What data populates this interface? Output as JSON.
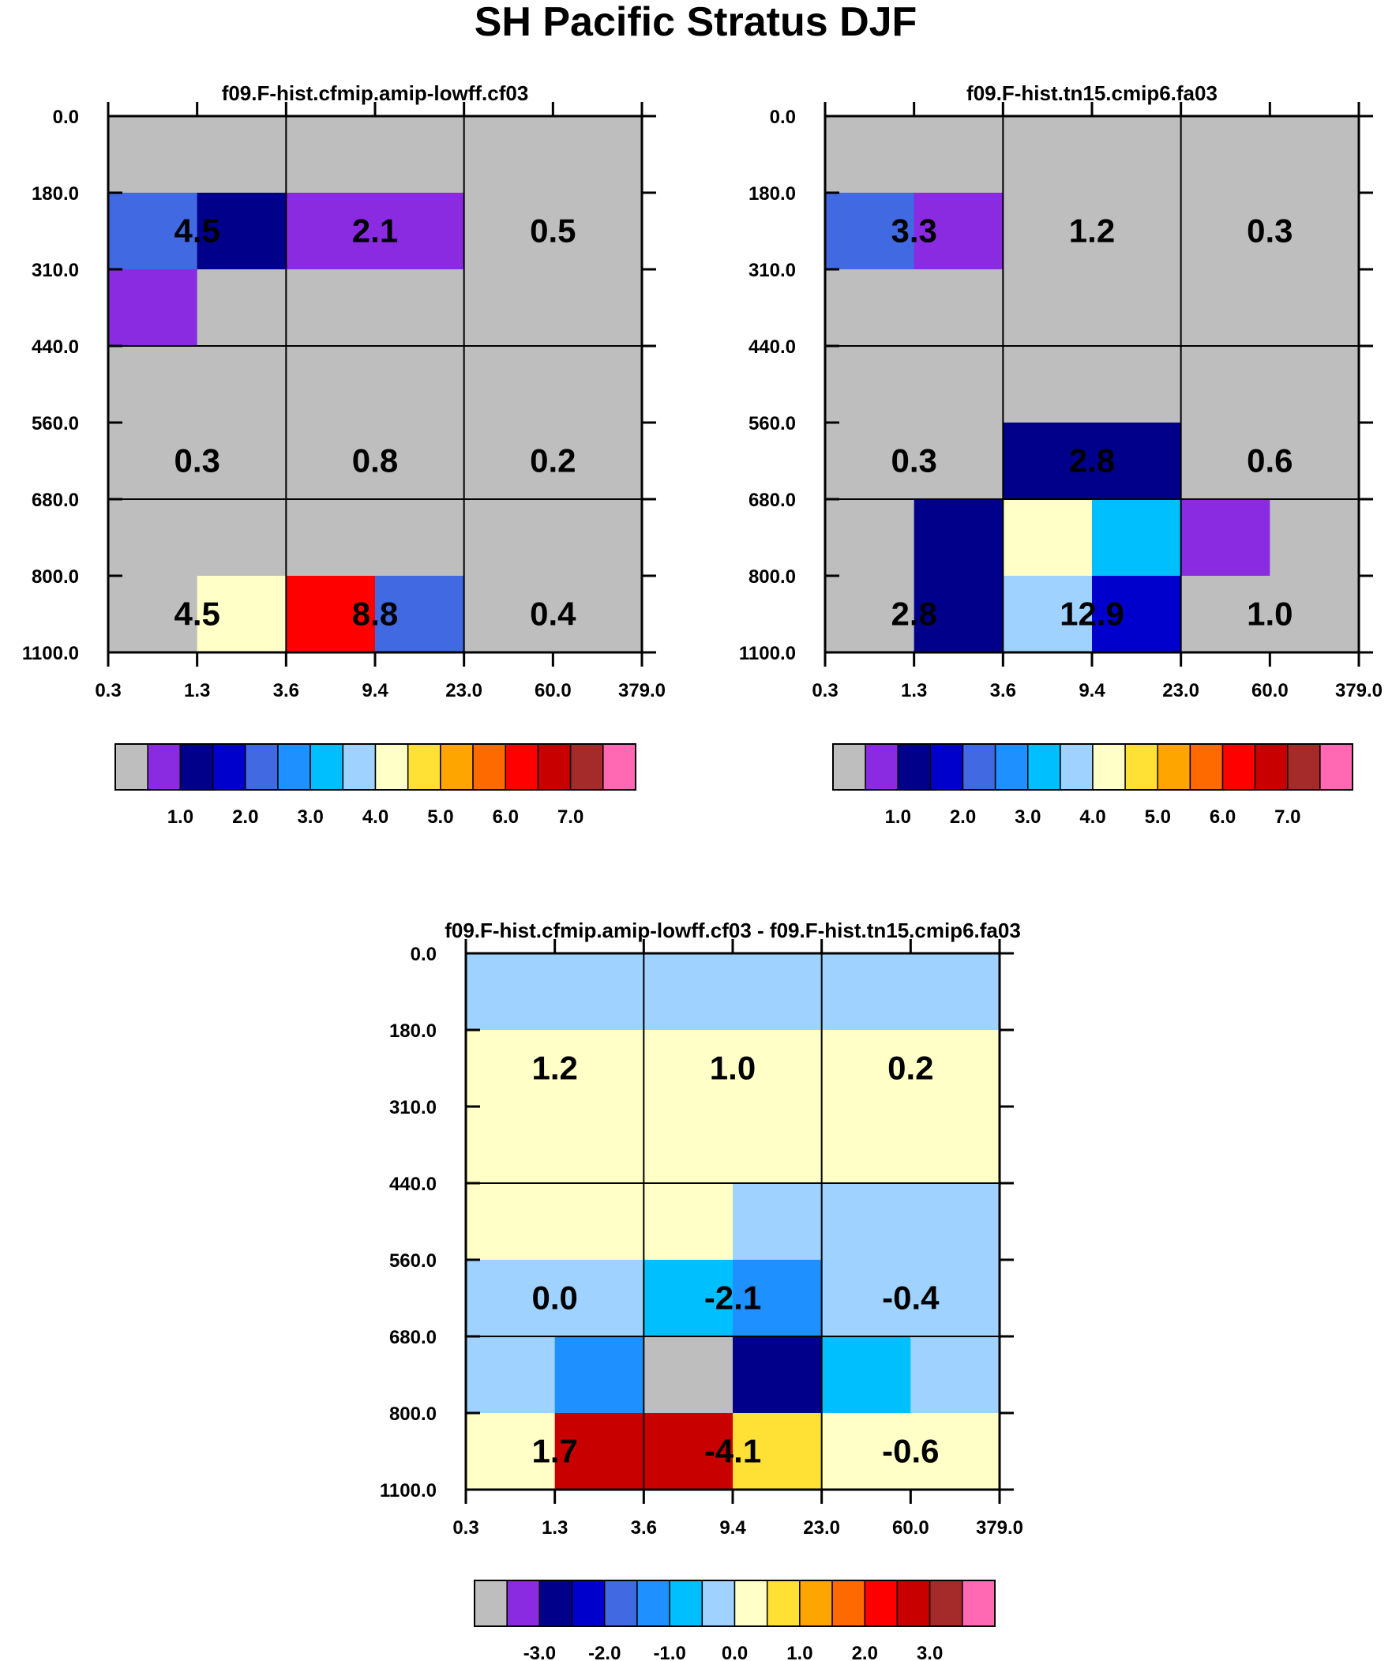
{
  "title": "SH Pacific Stratus DJF",
  "colors": {
    "gray": "#BEBEBE",
    "palette": [
      "#BEBEBE",
      "#8A2BE2",
      "#00008B",
      "#0000CD",
      "#4169E1",
      "#1E90FF",
      "#00BFFF",
      "#A0D2FF",
      "#FFFFC8",
      "#FFE135",
      "#FFA500",
      "#FF6A00",
      "#FF0000",
      "#C80000",
      "#A52A2A",
      "#FF69B4"
    ],
    "grid_line": "#000000",
    "text": "#000000"
  },
  "chart_data": [
    {
      "type": "heatmap",
      "title": "f09.F-hist.cfmip.amip-lowff.cf03",
      "x_ticks": [
        "0.3",
        "1.3",
        "3.6",
        "9.4",
        "23.0",
        "60.0",
        "379.0"
      ],
      "y_ticks": [
        "0.0",
        "180.0",
        "310.0",
        "440.0",
        "560.0",
        "680.0",
        "800.0",
        "1100.0"
      ],
      "x_label": "",
      "y_label": "",
      "grid_x_lines": [
        2,
        4
      ],
      "grid_y_lines": [
        3,
        5
      ],
      "cells": [
        [
          0,
          0,
          0,
          0,
          0,
          0
        ],
        [
          4,
          2,
          1,
          1,
          0,
          0
        ],
        [
          1,
          0,
          0,
          0,
          0,
          0
        ],
        [
          0,
          0,
          0,
          0,
          0,
          0
        ],
        [
          0,
          0,
          0,
          0,
          0,
          0
        ],
        [
          0,
          0,
          0,
          0,
          0,
          0
        ],
        [
          0,
          8,
          12,
          4,
          0,
          0
        ]
      ],
      "labels": [
        {
          "text": "4.5",
          "col": 1,
          "row": 1
        },
        {
          "text": "2.1",
          "col": 3,
          "row": 1
        },
        {
          "text": "0.5",
          "col": 5,
          "row": 1
        },
        {
          "text": "0.3",
          "col": 1,
          "row": 4
        },
        {
          "text": "0.8",
          "col": 3,
          "row": 4
        },
        {
          "text": "0.2",
          "col": 5,
          "row": 4
        },
        {
          "text": "4.5",
          "col": 1,
          "row": 6
        },
        {
          "text": "8.8",
          "col": 3,
          "row": 6
        },
        {
          "text": "0.4",
          "col": 5,
          "row": 6
        }
      ],
      "colorbar": {
        "labels": [
          "1.0",
          "2.0",
          "3.0",
          "4.0",
          "5.0",
          "6.0",
          "7.0"
        ],
        "first_label_boundary": 2
      }
    },
    {
      "type": "heatmap",
      "title": "f09.F-hist.tn15.cmip6.fa03",
      "x_ticks": [
        "0.3",
        "1.3",
        "3.6",
        "9.4",
        "23.0",
        "60.0",
        "379.0"
      ],
      "y_ticks": [
        "0.0",
        "180.0",
        "310.0",
        "440.0",
        "560.0",
        "680.0",
        "800.0",
        "1100.0"
      ],
      "x_label": "",
      "y_label": "",
      "grid_x_lines": [
        2,
        4
      ],
      "grid_y_lines": [
        3,
        5
      ],
      "cells": [
        [
          0,
          0,
          0,
          0,
          0,
          0
        ],
        [
          4,
          1,
          0,
          0,
          0,
          0
        ],
        [
          0,
          0,
          0,
          0,
          0,
          0
        ],
        [
          0,
          0,
          0,
          0,
          0,
          0
        ],
        [
          0,
          0,
          2,
          2,
          0,
          0
        ],
        [
          0,
          2,
          8,
          6,
          1,
          0
        ],
        [
          0,
          2,
          7,
          3,
          0,
          0
        ]
      ],
      "labels": [
        {
          "text": "3.3",
          "col": 1,
          "row": 1
        },
        {
          "text": "1.2",
          "col": 3,
          "row": 1
        },
        {
          "text": "0.3",
          "col": 5,
          "row": 1
        },
        {
          "text": "0.3",
          "col": 1,
          "row": 4
        },
        {
          "text": "2.8",
          "col": 3,
          "row": 4
        },
        {
          "text": "0.6",
          "col": 5,
          "row": 4
        },
        {
          "text": "2.8",
          "col": 1,
          "row": 6
        },
        {
          "text": "12.9",
          "col": 3,
          "row": 6
        },
        {
          "text": "1.0",
          "col": 5,
          "row": 6
        }
      ],
      "colorbar": {
        "labels": [
          "1.0",
          "2.0",
          "3.0",
          "4.0",
          "5.0",
          "6.0",
          "7.0"
        ],
        "first_label_boundary": 2
      }
    },
    {
      "type": "heatmap",
      "title": "f09.F-hist.cfmip.amip-lowff.cf03 - f09.F-hist.tn15.cmip6.fa03",
      "x_ticks": [
        "0.3",
        "1.3",
        "3.6",
        "9.4",
        "23.0",
        "60.0",
        "379.0"
      ],
      "y_ticks": [
        "0.0",
        "180.0",
        "310.0",
        "440.0",
        "560.0",
        "680.0",
        "800.0",
        "1100.0"
      ],
      "x_label": "",
      "y_label": "",
      "grid_x_lines": [
        2,
        4
      ],
      "grid_y_lines": [
        3,
        5
      ],
      "cells": [
        [
          7,
          7,
          7,
          7,
          7,
          7
        ],
        [
          8,
          8,
          8,
          8,
          8,
          8
        ],
        [
          8,
          8,
          8,
          8,
          8,
          8
        ],
        [
          8,
          8,
          8,
          7,
          7,
          7
        ],
        [
          7,
          7,
          6,
          5,
          7,
          7
        ],
        [
          7,
          5,
          0,
          2,
          6,
          7
        ],
        [
          8,
          13,
          13,
          9,
          8,
          8
        ]
      ],
      "labels": [
        {
          "text": "1.2",
          "col": 1,
          "row": 1
        },
        {
          "text": "1.0",
          "col": 3,
          "row": 1
        },
        {
          "text": "0.2",
          "col": 5,
          "row": 1
        },
        {
          "text": "0.0",
          "col": 1,
          "row": 4
        },
        {
          "text": "-2.1",
          "col": 3,
          "row": 4
        },
        {
          "text": "-0.4",
          "col": 5,
          "row": 4
        },
        {
          "text": "1.7",
          "col": 1,
          "row": 6
        },
        {
          "text": "-4.1",
          "col": 3,
          "row": 6
        },
        {
          "text": "-0.6",
          "col": 5,
          "row": 6
        }
      ],
      "colorbar": {
        "labels": [
          "-3.0",
          "-2.0",
          "-1.0",
          "0.0",
          "1.0",
          "2.0",
          "3.0"
        ],
        "first_label_boundary": 2
      }
    }
  ]
}
